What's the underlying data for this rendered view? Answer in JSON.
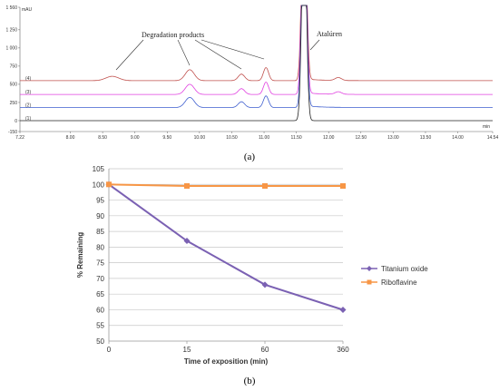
{
  "chart_data": [
    {
      "type": "line",
      "panel_label": "(a)",
      "y_unit": "mAU",
      "x_unit": "min",
      "xlim": [
        7.22,
        14.54
      ],
      "ylim": [
        -150,
        1560
      ],
      "x_ticks": [
        "7.22",
        "8.00",
        "8.50",
        "9.00",
        "9.50",
        "10.00",
        "10.50",
        "11.00",
        "11.50",
        "12.00",
        "12.50",
        "13.00",
        "13.50",
        "14.00",
        "14.54"
      ],
      "y_ticks": [
        "1 560",
        "1 250",
        "1 000",
        "750",
        "500",
        "250",
        "0",
        "-150"
      ],
      "annotations": [
        {
          "text": "Degradation products"
        },
        {
          "text": "Atalúren"
        }
      ],
      "series": [
        {
          "name": "(4)",
          "color": "#c0504d",
          "baseline": 550,
          "peaks": [
            [
              8.65,
              60,
              0.1
            ],
            [
              9.85,
              150,
              0.07
            ],
            [
              10.65,
              90,
              0.05
            ],
            [
              11.03,
              180,
              0.04
            ],
            [
              11.62,
              3000,
              0.035
            ],
            [
              12.15,
              40,
              0.05
            ]
          ]
        },
        {
          "name": "(3)",
          "color": "#e040e0",
          "baseline": 360,
          "peaks": [
            [
              9.85,
              140,
              0.07
            ],
            [
              10.65,
              80,
              0.05
            ],
            [
              11.03,
              170,
              0.04
            ],
            [
              11.62,
              3000,
              0.035
            ],
            [
              12.15,
              35,
              0.05
            ]
          ]
        },
        {
          "name": "(2)",
          "color": "#3f5fcf",
          "baseline": 180,
          "peaks": [
            [
              9.85,
              140,
              0.07
            ],
            [
              10.65,
              80,
              0.05
            ],
            [
              11.03,
              160,
              0.04
            ],
            [
              11.62,
              3000,
              0.035
            ]
          ]
        },
        {
          "name": "(1)",
          "color": "#222222",
          "baseline": 0,
          "peaks": [
            [
              11.62,
              3000,
              0.035
            ]
          ]
        }
      ]
    },
    {
      "type": "line",
      "panel_label": "(b)",
      "categories": [
        "0",
        "15",
        "60",
        "360"
      ],
      "xlabel": "Time of exposition (min)",
      "ylabel": "% Remaining",
      "ylim": [
        50,
        105
      ],
      "y_ticks": [
        50,
        55,
        60,
        65,
        70,
        75,
        80,
        85,
        90,
        95,
        100,
        105
      ],
      "grid": true,
      "legend": "right",
      "series": [
        {
          "name": "Titanium oxide",
          "color": "#7b61b3",
          "marker": "diamond",
          "values": [
            100,
            82,
            68,
            60
          ]
        },
        {
          "name": "Riboflavine",
          "color": "#f79646",
          "marker": "square",
          "values": [
            100,
            99.5,
            99.5,
            99.5
          ]
        }
      ]
    }
  ]
}
